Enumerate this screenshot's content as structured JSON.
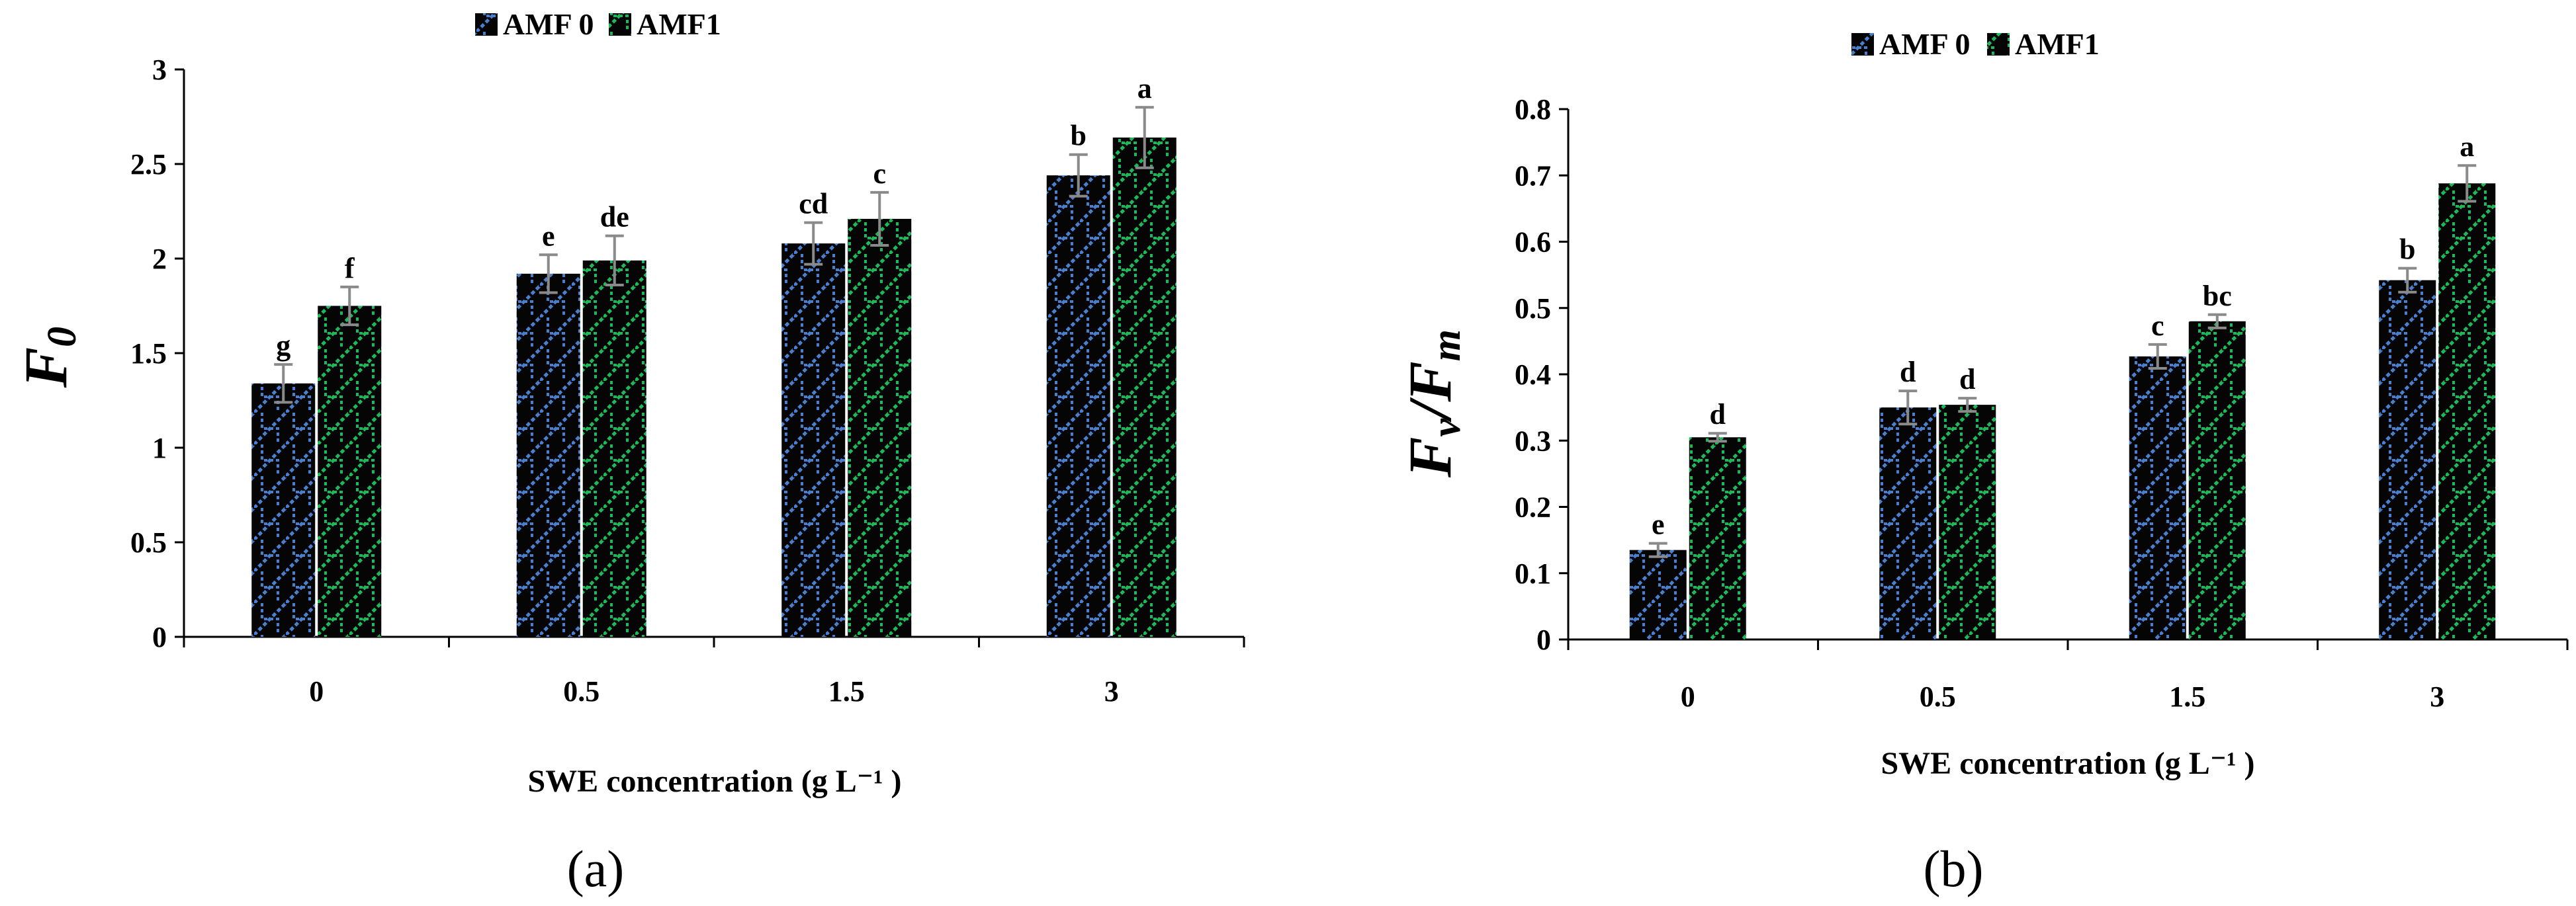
{
  "legend_labels": [
    "AMF 0",
    "AMF1"
  ],
  "colors": {
    "amf0": "#4a7fd0",
    "amf1": "#1db85a",
    "bar_bg": "#050505"
  },
  "chart_data": [
    {
      "type": "bar",
      "panel_label": "(a)",
      "ylabel": "F0",
      "xlabel": "SWE concentration  (g L⁻¹ )",
      "categories": [
        "0",
        "0.5",
        "1.5",
        "3"
      ],
      "ylim": [
        0,
        3
      ],
      "yticks": [
        "0",
        "0.5",
        "1",
        "1.5",
        "2",
        "2.5",
        "3"
      ],
      "grid": false,
      "legend": "top-center",
      "series": [
        {
          "name": "AMF 0",
          "values": [
            1.34,
            1.92,
            2.08,
            2.44
          ],
          "errors": [
            0.1,
            0.1,
            0.11,
            0.11
          ],
          "labels": [
            "g",
            "e",
            "cd",
            "b"
          ]
        },
        {
          "name": "AMF1",
          "values": [
            1.75,
            1.99,
            2.21,
            2.64
          ],
          "errors": [
            0.1,
            0.13,
            0.14,
            0.16
          ],
          "labels": [
            "f",
            "de",
            "c",
            "a"
          ]
        }
      ]
    },
    {
      "type": "bar",
      "panel_label": "(b)",
      "ylabel": "Fv/Fm",
      "xlabel": "SWE concentration  (g L⁻¹ )",
      "categories": [
        "0",
        "0.5",
        "1.5",
        "3"
      ],
      "ylim": [
        0,
        0.8
      ],
      "yticks": [
        "0",
        "0.1",
        "0.2",
        "0.3",
        "0.4",
        "0.5",
        "0.6",
        "0.7",
        "0.8"
      ],
      "grid": false,
      "legend": "top-center",
      "series": [
        {
          "name": "AMF 0",
          "values": [
            0.135,
            0.35,
            0.427,
            0.542
          ],
          "errors": [
            0.01,
            0.025,
            0.018,
            0.018
          ],
          "labels": [
            "e",
            "d",
            "c",
            "b"
          ]
        },
        {
          "name": "AMF1",
          "values": [
            0.305,
            0.354,
            0.48,
            0.688
          ],
          "errors": [
            0.006,
            0.01,
            0.01,
            0.027
          ],
          "labels": [
            "d",
            "d",
            "bc",
            "a"
          ]
        }
      ]
    }
  ]
}
